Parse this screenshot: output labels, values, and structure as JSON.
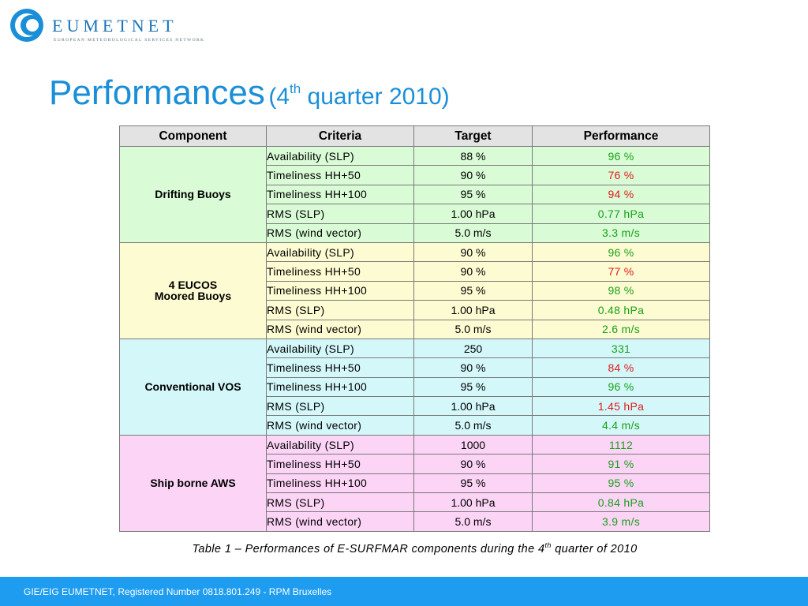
{
  "logo": {
    "name": "EUMETNET",
    "subtitle": "EUROPEAN METEOROLOGICAL SERVICES NETWORK",
    "color": "#1a73b8"
  },
  "title": {
    "main": "Performances",
    "paren_open": "(4",
    "sup": "th",
    "paren_rest": " quarter 2010)"
  },
  "table": {
    "headers": {
      "component": "Component",
      "criteria": "Criteria",
      "target": "Target",
      "performance": "Performance"
    },
    "groups": [
      {
        "component": "Drifting Buoys",
        "rows": [
          {
            "criteria": "Availability (SLP)",
            "target": "88 %",
            "performance": "96 %",
            "status": "good"
          },
          {
            "criteria": "Timeliness HH+50",
            "target": "90 %",
            "performance": "76 %",
            "status": "bad"
          },
          {
            "criteria": "Timeliness HH+100",
            "target": "95 %",
            "performance": "94 %",
            "status": "bad"
          },
          {
            "criteria": "RMS (SLP)",
            "target": "1.00 hPa",
            "performance": "0.77 hPa",
            "status": "good"
          },
          {
            "criteria": "RMS (wind vector)",
            "target": "5.0 m/s",
            "performance": "3.3 m/s",
            "status": "good"
          }
        ]
      },
      {
        "component_line1": "4 EUCOS",
        "component_line2": "Moored Buoys",
        "rows": [
          {
            "criteria": "Availability (SLP)",
            "target": "90 %",
            "performance": "96 %",
            "status": "good"
          },
          {
            "criteria": "Timeliness HH+50",
            "target": "90 %",
            "performance": "77 %",
            "status": "bad"
          },
          {
            "criteria": "Timeliness HH+100",
            "target": "95 %",
            "performance": "98 %",
            "status": "good"
          },
          {
            "criteria": "RMS (SLP)",
            "target": "1.00 hPa",
            "performance": "0.48 hPa",
            "status": "good"
          },
          {
            "criteria": "RMS (wind vector)",
            "target": "5.0 m/s",
            "performance": "2.6 m/s",
            "status": "good"
          }
        ]
      },
      {
        "component": "Conventional VOS",
        "rows": [
          {
            "criteria": "Availability (SLP)",
            "target": "250",
            "performance": "331",
            "status": "good"
          },
          {
            "criteria": "Timeliness HH+50",
            "target": "90 %",
            "performance": "84 %",
            "status": "bad"
          },
          {
            "criteria": "Timeliness HH+100",
            "target": "95 %",
            "performance": "96 %",
            "status": "good"
          },
          {
            "criteria": "RMS (SLP)",
            "target": "1.00 hPa",
            "performance": "1.45 hPa",
            "status": "bad"
          },
          {
            "criteria": "RMS (wind vector)",
            "target": "5.0 m/s",
            "performance": "4.4 m/s",
            "status": "good"
          }
        ]
      },
      {
        "component": "Ship borne AWS",
        "rows": [
          {
            "criteria": "Availability (SLP)",
            "target": "1000",
            "performance": "1112",
            "status": "good"
          },
          {
            "criteria": "Timeliness HH+50",
            "target": "90 %",
            "performance": "91 %",
            "status": "good"
          },
          {
            "criteria": "Timeliness HH+100",
            "target": "95 %",
            "performance": "95 %",
            "status": "good"
          },
          {
            "criteria": "RMS (SLP)",
            "target": "1.00 hPa",
            "performance": "0.84 hPa",
            "status": "good"
          },
          {
            "criteria": "RMS (wind vector)",
            "target": "5.0 m/s",
            "performance": "3.9 m/s",
            "status": "good"
          }
        ]
      }
    ]
  },
  "caption": {
    "before": "Table 1 – Performances of E-SURFMAR components during the 4",
    "sup": "th",
    "after": " quarter of 2010"
  },
  "footer": {
    "text": "GIE/EIG EUMETNET, Registered Number 0818.801.249 - RPM Bruxelles"
  },
  "colors": {
    "title": "#1a8fd8",
    "footer_bg": "#1e9cf0",
    "good": "#1aa01a",
    "bad": "#e21a1a",
    "drifting_bg": "#d9fbd6",
    "moored_bg": "#fdfbd2",
    "vos_bg": "#d4f7f9",
    "ship_bg": "#fbd4f6"
  },
  "icons": {
    "logo": "eumetnet-logo-icon"
  }
}
